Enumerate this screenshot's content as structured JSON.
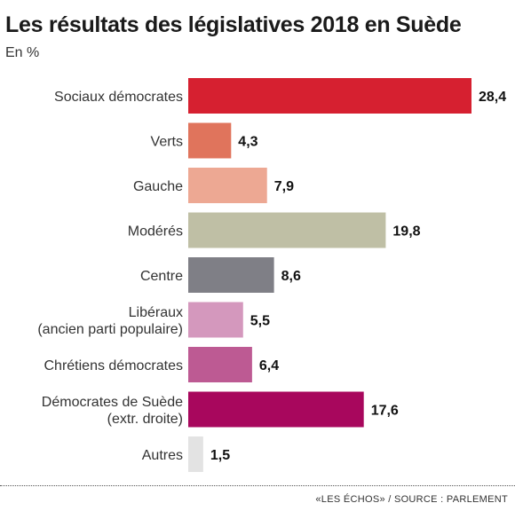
{
  "header": {
    "title": "Les résultats des législatives 2018 en Suède",
    "subtitle": "En %"
  },
  "footer": {
    "source": "«LES ÉCHOS» / SOURCE : PARLEMENT"
  },
  "chart_data": {
    "type": "bar",
    "orientation": "horizontal",
    "title": "Les résultats des législatives 2018 en Suède",
    "subtitle": "En %",
    "categories": [
      [
        "Sociaux démocrates"
      ],
      [
        "Verts"
      ],
      [
        "Gauche"
      ],
      [
        "Modérés"
      ],
      [
        "Centre"
      ],
      [
        "Libéraux",
        "(ancien parti populaire)"
      ],
      [
        "Chrétiens démocrates"
      ],
      [
        "Démocrates de Suède",
        "(extr. droite)"
      ],
      [
        "Autres"
      ]
    ],
    "values": [
      28.4,
      4.3,
      7.9,
      19.8,
      8.6,
      5.5,
      6.4,
      17.6,
      1.5
    ],
    "value_labels": [
      "28,4",
      "4,3",
      "7,9",
      "19,8",
      "8,6",
      "5,5",
      "6,4",
      "17,6",
      "1,5"
    ],
    "colors": [
      "#d62030",
      "#e0745c",
      "#eda893",
      "#bfbfa5",
      "#7f7f86",
      "#d498bd",
      "#bd5a93",
      "#a8075d",
      "#e3e3e3"
    ],
    "xlim": [
      0,
      28.4
    ],
    "grid": false,
    "legend": "none"
  }
}
